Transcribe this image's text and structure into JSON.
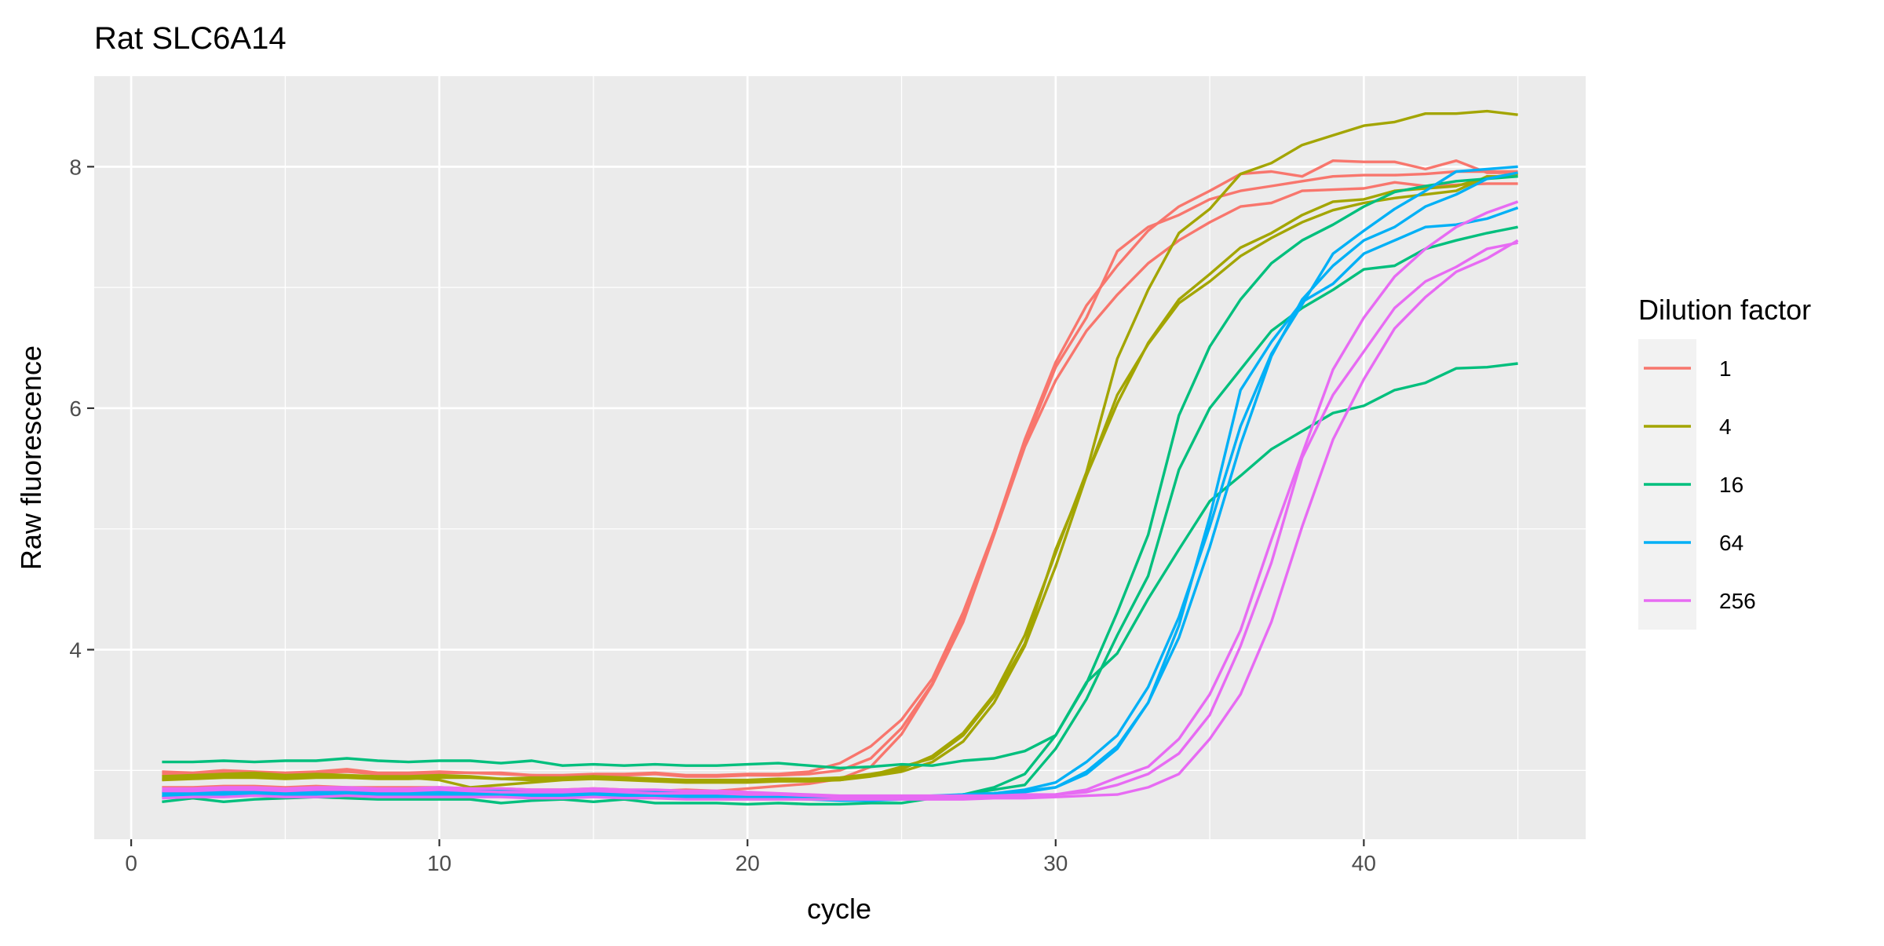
{
  "chart_data": {
    "type": "line",
    "title": "Rat SLC6A14",
    "xlabel": "cycle",
    "ylabel": "Raw fluorescence",
    "xlim": [
      -1.2,
      47.2
    ],
    "ylim": [
      2.43,
      8.75
    ],
    "x_ticks": [
      0,
      10,
      20,
      30,
      40
    ],
    "y_ticks": [
      4,
      6,
      8
    ],
    "x_tick_labels": [
      "0",
      "10",
      "20",
      "30",
      "40"
    ],
    "y_tick_labels": [
      "4",
      "6",
      "8"
    ],
    "grid": true,
    "legend": {
      "title": "Dilution factor",
      "placement": "right",
      "entries": [
        {
          "label": "1",
          "color": "#F8766D"
        },
        {
          "label": "4",
          "color": "#A3A500"
        },
        {
          "label": "16",
          "color": "#00BF7D"
        },
        {
          "label": "64",
          "color": "#00B0F6"
        },
        {
          "label": "256",
          "color": "#E76BF3"
        }
      ]
    },
    "x": [
      1,
      2,
      3,
      4,
      5,
      6,
      7,
      8,
      9,
      10,
      11,
      12,
      13,
      14,
      15,
      16,
      17,
      18,
      19,
      20,
      21,
      22,
      23,
      24,
      25,
      26,
      27,
      28,
      29,
      30,
      31,
      32,
      33,
      34,
      35,
      36,
      37,
      38,
      39,
      40,
      41,
      42,
      43,
      44,
      45
    ],
    "series": [
      {
        "dilution": "1",
        "color": "#F8766D",
        "values": [
          2.99,
          2.98,
          3.0,
          2.99,
          2.98,
          2.99,
          3.01,
          2.98,
          2.98,
          2.99,
          2.98,
          2.98,
          2.96,
          2.96,
          2.97,
          2.97,
          2.98,
          2.96,
          2.96,
          2.97,
          2.97,
          2.99,
          3.06,
          3.2,
          3.42,
          3.76,
          4.31,
          4.98,
          5.74,
          6.38,
          6.85,
          7.18,
          7.47,
          7.67,
          7.8,
          7.94,
          7.96,
          7.92,
          8.05,
          8.04,
          8.04,
          7.98,
          8.05,
          7.95,
          7.95
        ]
      },
      {
        "dilution": "1",
        "color": "#F8766D",
        "values": [
          2.97,
          2.97,
          2.98,
          2.98,
          2.97,
          2.98,
          2.99,
          2.97,
          2.97,
          2.98,
          2.98,
          2.97,
          2.96,
          2.95,
          2.96,
          2.96,
          2.97,
          2.95,
          2.95,
          2.96,
          2.96,
          2.97,
          3.0,
          3.1,
          3.35,
          3.72,
          4.28,
          4.96,
          5.7,
          6.34,
          6.75,
          7.3,
          7.5,
          7.6,
          7.73,
          7.8,
          7.84,
          7.88,
          7.92,
          7.93,
          7.93,
          7.94,
          7.96,
          7.96,
          7.96
        ]
      },
      {
        "dilution": "1",
        "color": "#F8766D",
        "values": [
          2.86,
          2.86,
          2.87,
          2.87,
          2.86,
          2.87,
          2.86,
          2.86,
          2.86,
          2.86,
          2.85,
          2.85,
          2.84,
          2.84,
          2.85,
          2.84,
          2.83,
          2.84,
          2.83,
          2.85,
          2.87,
          2.89,
          2.93,
          3.03,
          3.3,
          3.71,
          4.23,
          4.95,
          5.68,
          6.23,
          6.64,
          6.94,
          7.2,
          7.39,
          7.54,
          7.67,
          7.7,
          7.8,
          7.81,
          7.82,
          7.87,
          7.84,
          7.85,
          7.86,
          7.86
        ]
      },
      {
        "dilution": "4",
        "color": "#A3A500",
        "values": [
          2.95,
          2.96,
          2.97,
          2.98,
          2.96,
          2.97,
          2.96,
          2.95,
          2.95,
          2.96,
          2.95,
          2.93,
          2.94,
          2.94,
          2.95,
          2.94,
          2.93,
          2.92,
          2.92,
          2.92,
          2.93,
          2.93,
          2.94,
          2.97,
          3.01,
          3.12,
          3.31,
          3.63,
          4.12,
          4.8,
          5.47,
          6.41,
          6.98,
          7.45,
          7.65,
          7.94,
          8.03,
          8.18,
          8.26,
          8.34,
          8.37,
          8.44,
          8.44,
          8.46,
          8.43
        ]
      },
      {
        "dilution": "4",
        "color": "#A3A500",
        "values": [
          2.93,
          2.94,
          2.96,
          2.96,
          2.95,
          2.95,
          2.95,
          2.94,
          2.94,
          2.92,
          2.86,
          2.88,
          2.9,
          2.92,
          2.93,
          2.93,
          2.92,
          2.91,
          2.91,
          2.91,
          2.92,
          2.92,
          2.92,
          2.95,
          2.99,
          3.07,
          3.24,
          3.56,
          4.03,
          4.69,
          5.44,
          6.04,
          6.54,
          6.9,
          7.11,
          7.33,
          7.45,
          7.6,
          7.71,
          7.73,
          7.8,
          7.82,
          7.84,
          7.91,
          7.94
        ]
      },
      {
        "dilution": "4",
        "color": "#A3A500",
        "values": [
          2.92,
          2.93,
          2.94,
          2.94,
          2.93,
          2.94,
          2.94,
          2.93,
          2.93,
          2.94,
          2.94,
          2.93,
          2.92,
          2.93,
          2.93,
          2.92,
          2.91,
          2.9,
          2.9,
          2.9,
          2.91,
          2.91,
          2.92,
          2.96,
          3.03,
          3.1,
          3.29,
          3.61,
          4.05,
          4.83,
          5.44,
          6.11,
          6.53,
          6.87,
          7.05,
          7.26,
          7.41,
          7.54,
          7.64,
          7.7,
          7.74,
          7.77,
          7.8,
          7.92,
          7.92
        ]
      },
      {
        "dilution": "16",
        "color": "#00BF7D",
        "values": [
          3.07,
          3.07,
          3.08,
          3.07,
          3.08,
          3.08,
          3.1,
          3.08,
          3.07,
          3.08,
          3.08,
          3.06,
          3.08,
          3.04,
          3.05,
          3.04,
          3.05,
          3.04,
          3.04,
          3.05,
          3.06,
          3.04,
          3.02,
          3.03,
          3.05,
          3.04,
          3.08,
          3.1,
          3.16,
          3.29,
          3.73,
          3.97,
          4.42,
          4.83,
          5.23,
          5.44,
          5.66,
          5.81,
          5.96,
          6.02,
          6.15,
          6.21,
          6.33,
          6.34,
          6.37
        ]
      },
      {
        "dilution": "16",
        "color": "#00BF7D",
        "values": [
          2.74,
          2.77,
          2.74,
          2.76,
          2.77,
          2.78,
          2.77,
          2.76,
          2.76,
          2.76,
          2.76,
          2.73,
          2.75,
          2.76,
          2.74,
          2.76,
          2.73,
          2.73,
          2.73,
          2.72,
          2.73,
          2.72,
          2.72,
          2.73,
          2.73,
          2.77,
          2.8,
          2.86,
          2.97,
          3.29,
          3.72,
          4.31,
          4.95,
          5.94,
          6.51,
          6.9,
          7.2,
          7.39,
          7.52,
          7.67,
          7.79,
          7.84,
          7.88,
          7.9,
          7.92
        ]
      },
      {
        "dilution": "16",
        "color": "#00BF7D",
        "values": [
          2.78,
          2.79,
          2.8,
          2.8,
          2.79,
          2.8,
          2.8,
          2.79,
          2.8,
          2.8,
          2.8,
          2.79,
          2.8,
          2.79,
          2.79,
          2.78,
          2.79,
          2.78,
          2.78,
          2.78,
          2.77,
          2.77,
          2.77,
          2.77,
          2.78,
          2.78,
          2.8,
          2.84,
          2.88,
          3.18,
          3.59,
          4.12,
          4.61,
          5.49,
          6.0,
          6.32,
          6.64,
          6.83,
          6.98,
          7.15,
          7.18,
          7.32,
          7.39,
          7.45,
          7.5
        ]
      },
      {
        "dilution": "64",
        "color": "#00B0F6",
        "values": [
          2.81,
          2.81,
          2.82,
          2.82,
          2.81,
          2.82,
          2.82,
          2.81,
          2.81,
          2.82,
          2.81,
          2.81,
          2.8,
          2.8,
          2.81,
          2.8,
          2.8,
          2.79,
          2.79,
          2.79,
          2.79,
          2.78,
          2.77,
          2.77,
          2.77,
          2.78,
          2.8,
          2.81,
          2.84,
          2.9,
          3.07,
          3.29,
          3.69,
          4.27,
          5.02,
          5.85,
          6.45,
          6.86,
          7.28,
          7.47,
          7.65,
          7.8,
          7.96,
          7.98,
          8.0
        ]
      },
      {
        "dilution": "64",
        "color": "#00B0F6",
        "values": [
          2.79,
          2.79,
          2.8,
          2.8,
          2.79,
          2.8,
          2.8,
          2.79,
          2.79,
          2.8,
          2.79,
          2.79,
          2.78,
          2.78,
          2.79,
          2.78,
          2.78,
          2.77,
          2.77,
          2.77,
          2.77,
          2.76,
          2.75,
          2.75,
          2.76,
          2.77,
          2.78,
          2.8,
          2.82,
          2.86,
          2.97,
          3.18,
          3.56,
          4.1,
          4.85,
          5.7,
          6.43,
          6.9,
          7.18,
          7.39,
          7.5,
          7.67,
          7.77,
          7.9,
          7.95
        ]
      },
      {
        "dilution": "64",
        "color": "#00B0F6",
        "values": [
          2.82,
          2.83,
          2.83,
          2.84,
          2.83,
          2.83,
          2.84,
          2.83,
          2.83,
          2.84,
          2.83,
          2.83,
          2.82,
          2.82,
          2.83,
          2.82,
          2.82,
          2.81,
          2.81,
          2.81,
          2.8,
          2.79,
          2.78,
          2.78,
          2.78,
          2.79,
          2.8,
          2.81,
          2.83,
          2.86,
          2.99,
          3.2,
          3.56,
          4.2,
          5.1,
          6.15,
          6.55,
          6.88,
          7.03,
          7.28,
          7.39,
          7.5,
          7.52,
          7.57,
          7.66
        ]
      },
      {
        "dilution": "256",
        "color": "#E76BF3",
        "values": [
          2.85,
          2.85,
          2.86,
          2.86,
          2.85,
          2.86,
          2.86,
          2.85,
          2.85,
          2.86,
          2.85,
          2.85,
          2.84,
          2.84,
          2.85,
          2.84,
          2.84,
          2.83,
          2.83,
          2.82,
          2.81,
          2.8,
          2.79,
          2.79,
          2.79,
          2.79,
          2.79,
          2.79,
          2.8,
          2.8,
          2.84,
          2.94,
          3.03,
          3.26,
          3.63,
          4.16,
          4.91,
          5.62,
          6.32,
          6.75,
          7.09,
          7.32,
          7.5,
          7.62,
          7.71
        ]
      },
      {
        "dilution": "256",
        "color": "#E76BF3",
        "values": [
          2.83,
          2.83,
          2.84,
          2.84,
          2.83,
          2.84,
          2.84,
          2.83,
          2.83,
          2.84,
          2.83,
          2.82,
          2.82,
          2.82,
          2.83,
          2.82,
          2.81,
          2.81,
          2.81,
          2.8,
          2.8,
          2.79,
          2.78,
          2.78,
          2.78,
          2.78,
          2.78,
          2.78,
          2.79,
          2.8,
          2.82,
          2.88,
          2.97,
          3.14,
          3.46,
          4.03,
          4.72,
          5.59,
          6.11,
          6.47,
          6.83,
          7.05,
          7.17,
          7.32,
          7.37
        ]
      },
      {
        "dilution": "256",
        "color": "#E76BF3",
        "values": [
          2.77,
          2.78,
          2.78,
          2.79,
          2.78,
          2.78,
          2.79,
          2.78,
          2.78,
          2.78,
          2.78,
          2.78,
          2.77,
          2.77,
          2.78,
          2.77,
          2.77,
          2.76,
          2.76,
          2.76,
          2.76,
          2.76,
          2.76,
          2.76,
          2.76,
          2.76,
          2.76,
          2.77,
          2.77,
          2.78,
          2.79,
          2.8,
          2.86,
          2.97,
          3.26,
          3.63,
          4.23,
          5.02,
          5.74,
          6.24,
          6.66,
          6.92,
          7.13,
          7.24,
          7.39
        ]
      }
    ]
  }
}
